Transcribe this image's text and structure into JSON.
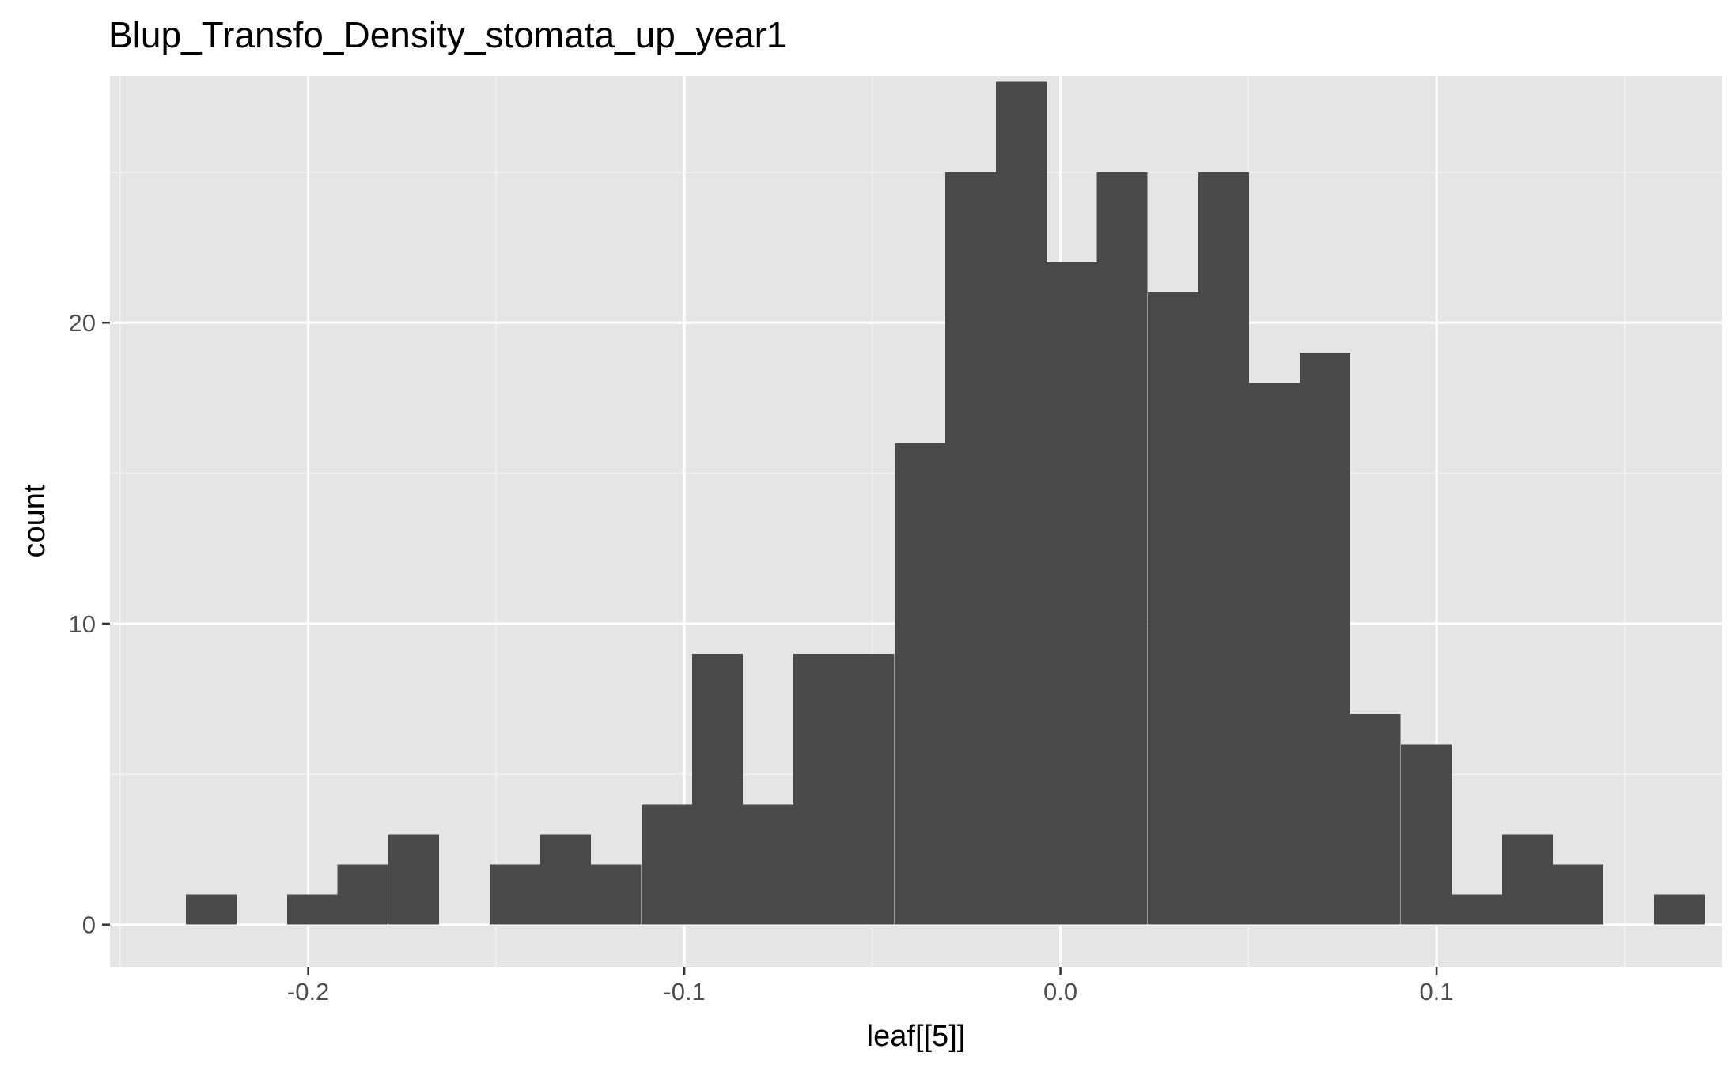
{
  "chart_data": {
    "type": "bar",
    "title": "Blup_Transfo_Density_stomata_up_year1",
    "xlabel": "leaf[[5]]",
    "ylabel": "count",
    "xlim": [
      -0.2527,
      0.1759
    ],
    "ylim": [
      -1.4,
      28.2
    ],
    "x_ticks": [
      -0.2,
      -0.1,
      0.0,
      0.1
    ],
    "x_tick_labels": [
      "-0.2",
      "-0.1",
      "0.0",
      "0.1"
    ],
    "y_ticks": [
      0,
      10,
      20
    ],
    "y_tick_labels": [
      "0",
      "10",
      "20"
    ],
    "grid": true,
    "bin_width": 0.01346,
    "bins": [
      {
        "x0": -0.2325,
        "count": 1
      },
      {
        "x0": -0.2191,
        "count": 0
      },
      {
        "x0": -0.2056,
        "count": 1
      },
      {
        "x0": -0.1922,
        "count": 2
      },
      {
        "x0": -0.1787,
        "count": 3
      },
      {
        "x0": -0.1652,
        "count": 0
      },
      {
        "x0": -0.1518,
        "count": 2
      },
      {
        "x0": -0.1383,
        "count": 3
      },
      {
        "x0": -0.1249,
        "count": 2
      },
      {
        "x0": -0.1114,
        "count": 4
      },
      {
        "x0": -0.0979,
        "count": 9
      },
      {
        "x0": -0.0845,
        "count": 4
      },
      {
        "x0": -0.071,
        "count": 9
      },
      {
        "x0": -0.0576,
        "count": 9
      },
      {
        "x0": -0.0441,
        "count": 16
      },
      {
        "x0": -0.0306,
        "count": 25
      },
      {
        "x0": -0.0172,
        "count": 28
      },
      {
        "x0": -0.0037,
        "count": 22
      },
      {
        "x0": 0.0097,
        "count": 25
      },
      {
        "x0": 0.0232,
        "count": 21
      },
      {
        "x0": 0.0367,
        "count": 25
      },
      {
        "x0": 0.0501,
        "count": 18
      },
      {
        "x0": 0.0636,
        "count": 19
      },
      {
        "x0": 0.077,
        "count": 7
      },
      {
        "x0": 0.0905,
        "count": 6
      },
      {
        "x0": 0.104,
        "count": 1
      },
      {
        "x0": 0.1174,
        "count": 3
      },
      {
        "x0": 0.1309,
        "count": 2
      },
      {
        "x0": 0.1443,
        "count": 0
      },
      {
        "x0": 0.1578,
        "count": 1
      }
    ],
    "colors": {
      "bar_fill": "#494949",
      "panel_background": "#e5e5e5",
      "grid_major": "#ffffff",
      "grid_minor": "#f2f2f2",
      "tick_label": "#4d4d4d",
      "tick_mark": "#333333"
    }
  }
}
